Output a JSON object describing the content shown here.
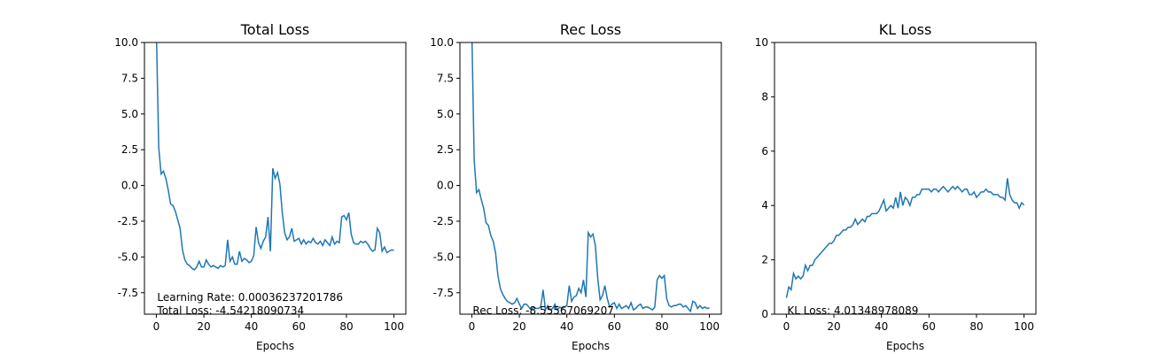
{
  "chart_data": [
    {
      "type": "line",
      "title": "Total Loss",
      "xlabel": "Epochs",
      "color": "#1f77b4",
      "annotations": [
        "Learning Rate: 0.00036237201786",
        "Total Loss: -4.54218090734"
      ],
      "x": [
        0,
        1,
        2,
        3,
        4,
        5,
        6,
        7,
        8,
        9,
        10,
        11,
        12,
        13,
        14,
        15,
        16,
        17,
        18,
        19,
        20,
        21,
        22,
        23,
        24,
        25,
        26,
        27,
        28,
        29,
        30,
        31,
        32,
        33,
        34,
        35,
        36,
        37,
        38,
        39,
        40,
        41,
        42,
        43,
        44,
        45,
        46,
        47,
        48,
        49,
        50,
        51,
        52,
        53,
        54,
        55,
        56,
        57,
        58,
        59,
        60,
        61,
        62,
        63,
        64,
        65,
        66,
        67,
        68,
        69,
        70,
        71,
        72,
        73,
        74,
        75,
        76,
        77,
        78,
        79,
        80,
        81,
        82,
        83,
        84,
        85,
        86,
        87,
        88,
        89,
        90,
        91,
        92,
        93,
        94,
        95,
        96,
        97,
        98,
        99,
        100
      ],
      "values": [
        11,
        2.7,
        0.8,
        1.0,
        0.5,
        -0.3,
        -1.3,
        -1.4,
        -1.8,
        -2.4,
        -3.0,
        -4.5,
        -5.2,
        -5.5,
        -5.6,
        -5.8,
        -5.9,
        -5.7,
        -5.3,
        -5.7,
        -5.7,
        -5.2,
        -5.5,
        -5.7,
        -5.6,
        -5.7,
        -5.8,
        -5.6,
        -5.7,
        -5.6,
        -3.8,
        -5.3,
        -5.0,
        -5.5,
        -5.5,
        -4.6,
        -5.3,
        -5.1,
        -5.2,
        -5.4,
        -5.3,
        -4.9,
        -2.9,
        -4.0,
        -4.4,
        -3.9,
        -3.6,
        -2.2,
        -4.6,
        1.2,
        0.5,
        0.9,
        0.1,
        -1.9,
        -3.3,
        -3.8,
        -3.6,
        -3.0,
        -3.9,
        -3.8,
        -3.7,
        -4.1,
        -3.8,
        -4.1,
        -3.9,
        -4.0,
        -3.7,
        -4.0,
        -4.1,
        -3.9,
        -4.2,
        -3.8,
        -4.0,
        -4.2,
        -3.6,
        -4.1,
        -3.9,
        -4.0,
        -2.2,
        -2.1,
        -2.4,
        -1.9,
        -3.4,
        -4.0,
        -4.1,
        -4.1,
        -3.9,
        -4.0,
        -3.9,
        -4.1,
        -4.4,
        -4.6,
        -4.5,
        -3.0,
        -3.3,
        -4.6,
        -4.3,
        -4.7,
        -4.6,
        -4.5,
        -4.54
      ],
      "xlim": [
        -5,
        105
      ],
      "xticks": [
        0,
        20,
        40,
        60,
        80,
        100
      ],
      "ylim": [
        -9,
        10
      ],
      "yticks": [
        -7.5,
        {
          "value": -5,
          "label": "-5.0"
        },
        -2.5,
        {
          "value": 0,
          "label": "0.0"
        },
        2.5,
        {
          "value": 5,
          "label": "5.0"
        },
        7.5,
        {
          "value": 10,
          "label": "10.0"
        }
      ]
    },
    {
      "type": "line",
      "title": "Rec Loss",
      "xlabel": "Epochs",
      "color": "#1f77b4",
      "annotations": [
        "Rec Loss: -8.55567069207"
      ],
      "x": [
        0,
        1,
        2,
        3,
        4,
        5,
        6,
        7,
        8,
        9,
        10,
        11,
        12,
        13,
        14,
        15,
        16,
        17,
        18,
        19,
        20,
        21,
        22,
        23,
        24,
        25,
        26,
        27,
        28,
        29,
        30,
        31,
        32,
        33,
        34,
        35,
        36,
        37,
        38,
        39,
        40,
        41,
        42,
        43,
        44,
        45,
        46,
        47,
        48,
        49,
        50,
        51,
        52,
        53,
        54,
        55,
        56,
        57,
        58,
        59,
        60,
        61,
        62,
        63,
        64,
        65,
        66,
        67,
        68,
        69,
        70,
        71,
        72,
        73,
        74,
        75,
        76,
        77,
        78,
        79,
        80,
        81,
        82,
        83,
        84,
        85,
        86,
        87,
        88,
        89,
        90,
        91,
        92,
        93,
        94,
        95,
        96,
        97,
        98,
        99,
        100
      ],
      "values": [
        11,
        1.8,
        -0.5,
        -0.3,
        -1.0,
        -1.6,
        -2.6,
        -2.8,
        -3.5,
        -3.9,
        -4.7,
        -6.3,
        -7.2,
        -7.6,
        -7.9,
        -8.1,
        -8.2,
        -8.3,
        -8.2,
        -7.9,
        -8.3,
        -8.6,
        -8.3,
        -8.3,
        -8.5,
        -8.7,
        -8.5,
        -8.6,
        -8.6,
        -8.5,
        -7.3,
        -8.7,
        -8.4,
        -8.7,
        -8.6,
        -8.3,
        -8.7,
        -8.5,
        -8.6,
        -8.5,
        -8.4,
        -7.0,
        -8.1,
        -7.8,
        -7.7,
        -7.2,
        -7.5,
        -6.6,
        -7.8,
        -3.3,
        -3.6,
        -3.4,
        -4.2,
        -6.5,
        -8.0,
        -7.7,
        -7.0,
        -7.9,
        -8.5,
        -8.3,
        -8.2,
        -8.6,
        -8.3,
        -8.6,
        -8.5,
        -8.4,
        -8.6,
        -8.2,
        -8.7,
        -8.6,
        -8.4,
        -8.3,
        -8.6,
        -8.5,
        -8.5,
        -8.6,
        -8.7,
        -8.5,
        -6.6,
        -6.3,
        -6.5,
        -6.3,
        -7.9,
        -8.4,
        -8.5,
        -8.4,
        -8.4,
        -8.3,
        -8.3,
        -8.5,
        -8.4,
        -8.6,
        -8.8,
        -8.1,
        -8.2,
        -8.6,
        -8.4,
        -8.6,
        -8.5,
        -8.6,
        -8.56
      ],
      "xlim": [
        -5,
        105
      ],
      "xticks": [
        0,
        20,
        40,
        60,
        80,
        100
      ],
      "ylim": [
        -9,
        10
      ],
      "yticks": [
        -7.5,
        {
          "value": -5,
          "label": "-5.0"
        },
        -2.5,
        {
          "value": 0,
          "label": "0.0"
        },
        2.5,
        {
          "value": 5,
          "label": "5.0"
        },
        7.5,
        {
          "value": 10,
          "label": "10.0"
        }
      ]
    },
    {
      "type": "line",
      "title": "KL Loss",
      "xlabel": "Epochs",
      "color": "#1f77b4",
      "annotations": [
        "KL Loss: 4.01348978089"
      ],
      "x": [
        0,
        1,
        2,
        3,
        4,
        5,
        6,
        7,
        8,
        9,
        10,
        11,
        12,
        13,
        14,
        15,
        16,
        17,
        18,
        19,
        20,
        21,
        22,
        23,
        24,
        25,
        26,
        27,
        28,
        29,
        30,
        31,
        32,
        33,
        34,
        35,
        36,
        37,
        38,
        39,
        40,
        41,
        42,
        43,
        44,
        45,
        46,
        47,
        48,
        49,
        50,
        51,
        52,
        53,
        54,
        55,
        56,
        57,
        58,
        59,
        60,
        61,
        62,
        63,
        64,
        65,
        66,
        67,
        68,
        69,
        70,
        71,
        72,
        73,
        74,
        75,
        76,
        77,
        78,
        79,
        80,
        81,
        82,
        83,
        84,
        85,
        86,
        87,
        88,
        89,
        90,
        91,
        92,
        93,
        94,
        95,
        96,
        97,
        98,
        99,
        100
      ],
      "values": [
        0.6,
        1.0,
        0.9,
        1.5,
        1.3,
        1.4,
        1.3,
        1.4,
        1.8,
        1.6,
        1.8,
        1.8,
        2.0,
        2.1,
        2.2,
        2.3,
        2.4,
        2.5,
        2.6,
        2.6,
        2.7,
        2.9,
        2.9,
        3.0,
        3.1,
        3.1,
        3.2,
        3.2,
        3.3,
        3.5,
        3.3,
        3.4,
        3.5,
        3.4,
        3.6,
        3.6,
        3.7,
        3.7,
        3.7,
        3.8,
        4.0,
        4.2,
        3.8,
        3.9,
        4.0,
        3.9,
        4.3,
        3.9,
        4.5,
        4.0,
        4.3,
        4.2,
        4.0,
        4.3,
        4.3,
        4.4,
        4.4,
        4.6,
        4.6,
        4.6,
        4.6,
        4.5,
        4.6,
        4.6,
        4.5,
        4.6,
        4.7,
        4.6,
        4.5,
        4.6,
        4.7,
        4.6,
        4.7,
        4.6,
        4.5,
        4.6,
        4.6,
        4.4,
        4.4,
        4.5,
        4.3,
        4.4,
        4.5,
        4.5,
        4.6,
        4.5,
        4.5,
        4.4,
        4.4,
        4.4,
        4.3,
        4.3,
        4.2,
        5.0,
        4.4,
        4.2,
        4.1,
        4.1,
        3.9,
        4.1,
        4.01
      ],
      "xlim": [
        -5,
        105
      ],
      "xticks": [
        0,
        20,
        40,
        60,
        80,
        100
      ],
      "ylim": [
        0,
        10
      ],
      "yticks": [
        0,
        2,
        4,
        6,
        8,
        10
      ]
    }
  ]
}
